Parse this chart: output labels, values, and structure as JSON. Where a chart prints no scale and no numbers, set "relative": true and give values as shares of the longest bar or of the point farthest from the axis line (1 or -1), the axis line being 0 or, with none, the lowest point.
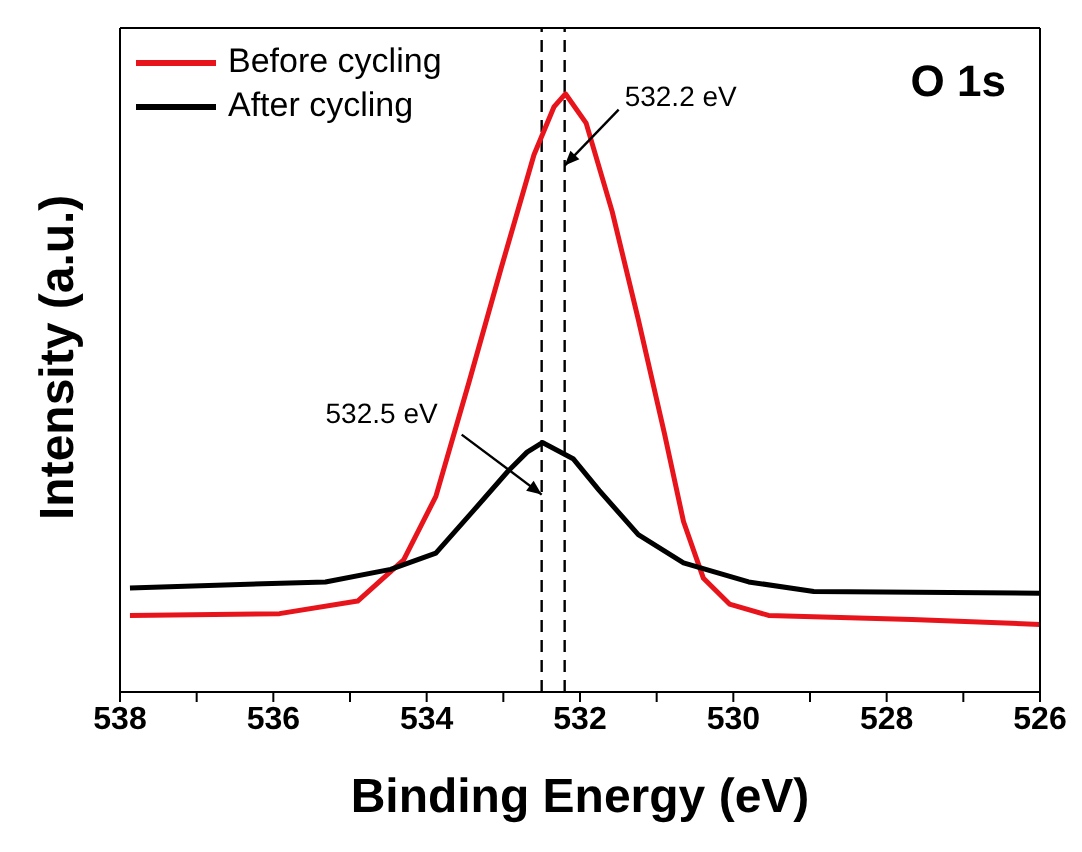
{
  "chart_data": {
    "type": "line",
    "relative": true,
    "xlabel": "Binding Energy (eV)",
    "ylabel": "Intensity (a.u.)",
    "xlim": [
      538,
      526
    ],
    "xticks": [
      538,
      {
        "value": 537,
        "label": null
      },
      536,
      {
        "value": 535,
        "label": null
      },
      534,
      {
        "value": 533,
        "label": null
      },
      532,
      {
        "value": 531,
        "label": null
      },
      530,
      {
        "value": 529,
        "label": null
      },
      528,
      {
        "value": 527,
        "label": null
      },
      526
    ],
    "series": [
      {
        "name": "Before cycling",
        "color": "#e8141b",
        "x": [
          537.87,
          535.92,
          534.9,
          534.3,
          533.88,
          533.45,
          533.03,
          532.6,
          532.34,
          532.19,
          531.92,
          531.58,
          531.24,
          530.9,
          530.65,
          530.39,
          530.05,
          529.54,
          527.67,
          526
        ],
        "values": [
          0.128,
          0.131,
          0.152,
          0.221,
          0.327,
          0.517,
          0.708,
          0.898,
          0.978,
          1,
          0.951,
          0.803,
          0.623,
          0.433,
          0.285,
          0.19,
          0.147,
          0.128,
          0.121,
          0.113
        ]
      },
      {
        "name": "After cycling",
        "color": "#000000",
        "x": [
          537.87,
          535.32,
          534.47,
          533.88,
          533.37,
          532.94,
          532.69,
          532.49,
          532.09,
          531.75,
          531.24,
          530.65,
          529.8,
          528.95,
          526
        ],
        "values": [
          0.174,
          0.184,
          0.205,
          0.232,
          0.306,
          0.369,
          0.401,
          0.417,
          0.39,
          0.337,
          0.263,
          0.216,
          0.184,
          0.168,
          0.165
        ]
      }
    ],
    "ref_lines": [
      {
        "axis": "x",
        "value": 532.2,
        "color": "#000000",
        "line_style": "dashed"
      },
      {
        "axis": "x",
        "value": 532.5,
        "color": "#000000",
        "line_style": "dashed"
      }
    ],
    "annotations": [
      {
        "text": "532.2 eV",
        "x": 532.2,
        "y": 0.88
      },
      {
        "text": "532.5 eV",
        "x": 532.5,
        "y": 0.33
      },
      "O 1s"
    ],
    "legend": "top left",
    "marker": "none",
    "line_style": "solid"
  }
}
